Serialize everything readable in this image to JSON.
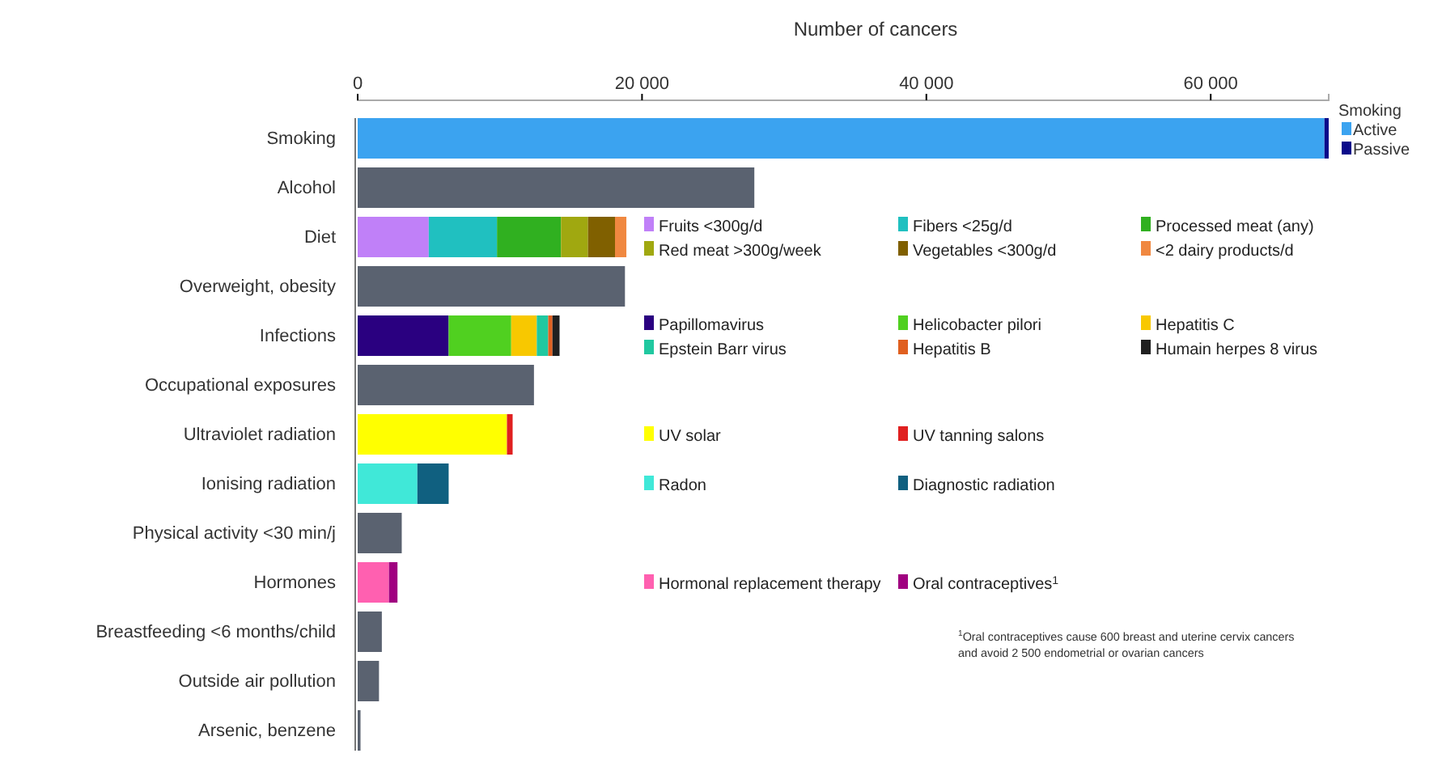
{
  "chart_data": {
    "type": "bar",
    "orientation": "horizontal",
    "stacked": true,
    "xlabel": "Number of cancers",
    "legend_title": "Smoking",
    "legend": "right",
    "grid": false,
    "categories": [
      "Smoking",
      "Alcohol",
      "Diet",
      "Overweight, obesity",
      "Infections",
      "Occupational exposures",
      "Ultraviolet radiation",
      "Ionising radiation",
      "Physical activity <30 min/j",
      "Hormones",
      "Breastfeeding <6 months/child",
      "Outside air pollution",
      "Arsenic, benzene"
    ],
    "xlim": [
      0,
      68300
    ],
    "xticks": [
      0,
      {
        "value": 20000,
        "label": "20 000"
      },
      {
        "value": 40000,
        "label": "40 000"
      },
      {
        "value": 60000,
        "label": "60 000"
      }
    ],
    "series": [
      {
        "name": "Active",
        "color": "#3ba3f0",
        "values": [
          68000,
          0,
          0,
          0,
          0,
          0,
          0,
          0,
          0,
          0,
          0,
          0,
          0
        ]
      },
      {
        "name": "Passive",
        "color": "#0a0a8a",
        "values": [
          300,
          0,
          0,
          0,
          0,
          0,
          0,
          0,
          0,
          0,
          0,
          0,
          0
        ]
      },
      {
        "color": "#5a6270",
        "values": [
          0,
          27900,
          0,
          18800,
          0,
          12400,
          0,
          0,
          3100,
          0,
          1700,
          1500,
          200
        ]
      },
      {
        "name": "Fruits <300g/d",
        "color": "#c080f8",
        "values": [
          0,
          0,
          5000,
          0,
          0,
          0,
          0,
          0,
          0,
          0,
          0,
          0,
          0
        ]
      },
      {
        "name": "Fibers <25g/d",
        "color": "#20c0c0",
        "values": [
          0,
          0,
          4800,
          0,
          0,
          0,
          0,
          0,
          0,
          0,
          0,
          0,
          0
        ]
      },
      {
        "name": "Processed meat (any)",
        "color": "#30b020",
        "values": [
          0,
          0,
          4500,
          0,
          0,
          0,
          0,
          0,
          0,
          0,
          0,
          0,
          0
        ]
      },
      {
        "name": "Red meat >300g/week",
        "color": "#a0a810",
        "values": [
          0,
          0,
          1900,
          0,
          0,
          0,
          0,
          0,
          0,
          0,
          0,
          0,
          0
        ]
      },
      {
        "name": "Vegetables <300g/d",
        "color": "#806000",
        "values": [
          0,
          0,
          1900,
          0,
          0,
          0,
          0,
          0,
          0,
          0,
          0,
          0,
          0
        ]
      },
      {
        "name": "<2 dairy products/d",
        "color": "#f08840",
        "values": [
          0,
          0,
          800,
          0,
          0,
          0,
          0,
          0,
          0,
          0,
          0,
          0,
          0
        ]
      },
      {
        "name": "Papillomavirus",
        "color": "#2a0080",
        "values": [
          0,
          0,
          0,
          0,
          6400,
          0,
          0,
          0,
          0,
          0,
          0,
          0,
          0
        ]
      },
      {
        "name": "Helicobacter pilori",
        "color": "#50d020",
        "values": [
          0,
          0,
          0,
          0,
          4400,
          0,
          0,
          0,
          0,
          0,
          0,
          0,
          0
        ]
      },
      {
        "name": "Hepatitis C",
        "color": "#f8c800",
        "values": [
          0,
          0,
          0,
          0,
          1800,
          0,
          0,
          0,
          0,
          0,
          0,
          0,
          0
        ]
      },
      {
        "name": "Epstein Barr virus",
        "color": "#20c8a0",
        "values": [
          0,
          0,
          0,
          0,
          800,
          0,
          0,
          0,
          0,
          0,
          0,
          0,
          0
        ]
      },
      {
        "name": "Hepatitis B",
        "color": "#e06020",
        "values": [
          0,
          0,
          0,
          0,
          300,
          0,
          0,
          0,
          0,
          0,
          0,
          0,
          0
        ]
      },
      {
        "name": "Humain herpes 8 virus",
        "color": "#202020",
        "values": [
          0,
          0,
          0,
          0,
          500,
          0,
          0,
          0,
          0,
          0,
          0,
          0,
          0
        ]
      },
      {
        "name": "UV solar",
        "color": "#ffff00",
        "values": [
          0,
          0,
          0,
          0,
          0,
          0,
          10500,
          0,
          0,
          0,
          0,
          0,
          0
        ]
      },
      {
        "name": "UV tanning salons",
        "color": "#e02020",
        "values": [
          0,
          0,
          0,
          0,
          0,
          0,
          400,
          0,
          0,
          0,
          0,
          0,
          0
        ]
      },
      {
        "name": "Radon",
        "color": "#40e8d8",
        "values": [
          0,
          0,
          0,
          0,
          0,
          0,
          0,
          4200,
          0,
          0,
          0,
          0,
          0
        ]
      },
      {
        "name": "Diagnostic radiation",
        "color": "#106080",
        "values": [
          0,
          0,
          0,
          0,
          0,
          0,
          0,
          2200,
          0,
          0,
          0,
          0,
          0
        ]
      },
      {
        "name": "Hormonal replacement therapy",
        "color": "#ff60b0",
        "values": [
          0,
          0,
          0,
          0,
          0,
          0,
          0,
          0,
          0,
          2200,
          0,
          0,
          0
        ]
      },
      {
        "name": "Oral contraceptives$^{1}$",
        "color": "#a00080",
        "values": [
          0,
          0,
          0,
          0,
          0,
          0,
          0,
          0,
          0,
          600,
          0,
          0,
          0
        ]
      }
    ],
    "annotations": [
      "$^{1}$Oral contraceptives cause 600 breast and uterine cervix cancers and avoid 2 500 endometrial or ovarian cancers"
    ]
  }
}
